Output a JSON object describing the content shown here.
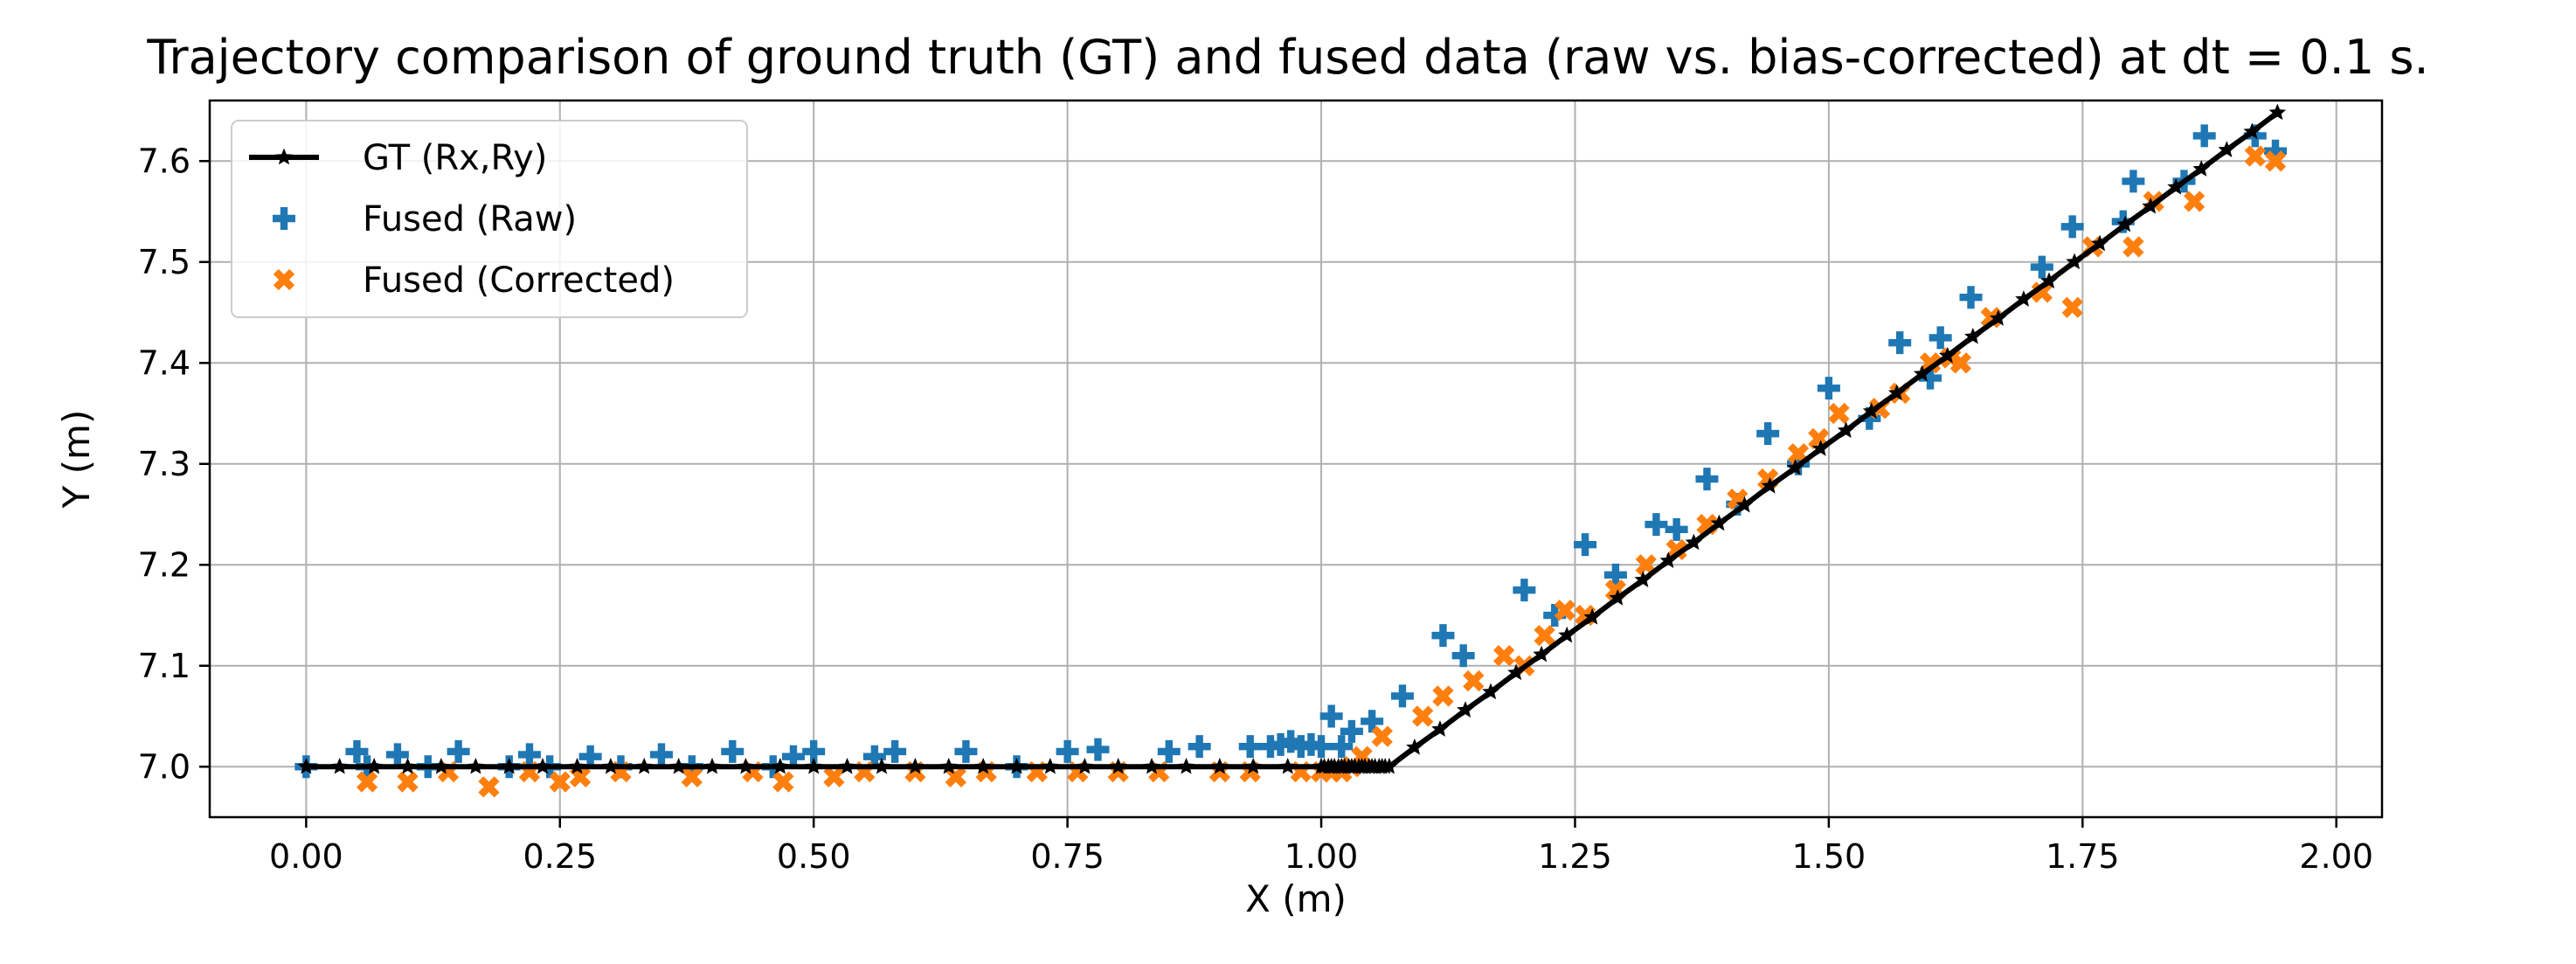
{
  "chart_data": {
    "type": "scatter",
    "title": "Trajectory comparison of ground truth (GT) and fused data (raw vs. bias-corrected) at dt = 0.1 s.",
    "xlabel": "X (m)",
    "ylabel": "Y (m)",
    "xlim": [
      -0.095,
      2.045
    ],
    "ylim": [
      6.95,
      7.66
    ],
    "xticks": [
      "0.00",
      "0.25",
      "0.50",
      "0.75",
      "1.00",
      "1.25",
      "1.50",
      "1.75",
      "2.00"
    ],
    "xtick_values": [
      0,
      0.25,
      0.5,
      0.75,
      1.0,
      1.25,
      1.5,
      1.75,
      2.0
    ],
    "yticks": [
      "7.0",
      "7.1",
      "7.2",
      "7.3",
      "7.4",
      "7.5",
      "7.6"
    ],
    "ytick_values": [
      7.0,
      7.1,
      7.2,
      7.3,
      7.4,
      7.5,
      7.6
    ],
    "grid": true,
    "legend": "top-left",
    "series": [
      {
        "name": "GT (Rx,Ry)",
        "kind": "line",
        "color": "#000000",
        "marker": "star",
        "x": [
          0.0,
          0.033,
          0.067,
          0.1,
          0.133,
          0.167,
          0.2,
          0.233,
          0.267,
          0.3,
          0.333,
          0.367,
          0.4,
          0.433,
          0.467,
          0.5,
          0.533,
          0.567,
          0.6,
          0.633,
          0.667,
          0.7,
          0.733,
          0.767,
          0.8,
          0.833,
          0.867,
          0.9,
          0.933,
          0.967,
          1.0,
          1.003,
          1.007,
          1.01,
          1.013,
          1.017,
          1.02,
          1.023,
          1.027,
          1.03,
          1.033,
          1.037,
          1.04,
          1.043,
          1.047,
          1.05,
          1.053,
          1.057,
          1.06,
          1.063,
          1.067,
          1.092,
          1.117,
          1.142,
          1.167,
          1.192,
          1.217,
          1.242,
          1.267,
          1.292,
          1.317,
          1.342,
          1.367,
          1.392,
          1.417,
          1.442,
          1.467,
          1.492,
          1.517,
          1.542,
          1.567,
          1.592,
          1.617,
          1.642,
          1.667,
          1.692,
          1.717,
          1.742,
          1.767,
          1.792,
          1.817,
          1.842,
          1.867,
          1.892,
          1.917,
          1.942
        ],
        "y": [
          7.0,
          7.0,
          7.0,
          7.0,
          7.0,
          7.0,
          7.0,
          7.0,
          7.0,
          7.0,
          7.0,
          7.0,
          7.0,
          7.0,
          7.0,
          7.0,
          7.0,
          7.0,
          7.0,
          7.0,
          7.0,
          7.0,
          7.0,
          7.0,
          7.0,
          7.0,
          7.0,
          7.0,
          7.0,
          7.0,
          7.0,
          7.0,
          7.0,
          7.0,
          7.0,
          7.0,
          7.0,
          7.0,
          7.0,
          7.0,
          7.0,
          7.0,
          7.0,
          7.0,
          7.0,
          7.0,
          7.0,
          7.0,
          7.0,
          7.0,
          7.0,
          7.019,
          7.037,
          7.056,
          7.074,
          7.093,
          7.111,
          7.13,
          7.148,
          7.167,
          7.185,
          7.204,
          7.222,
          7.241,
          7.259,
          7.278,
          7.296,
          7.315,
          7.333,
          7.352,
          7.37,
          7.389,
          7.407,
          7.426,
          7.444,
          7.463,
          7.481,
          7.5,
          7.518,
          7.537,
          7.555,
          7.574,
          7.592,
          7.611,
          7.629,
          7.648
        ]
      },
      {
        "name": "Fused (Raw)",
        "kind": "scatter",
        "color": "#1f77b4",
        "marker": "plus",
        "x": [
          0.0,
          0.05,
          0.06,
          0.09,
          0.12,
          0.15,
          0.2,
          0.22,
          0.24,
          0.28,
          0.31,
          0.35,
          0.38,
          0.42,
          0.46,
          0.48,
          0.5,
          0.56,
          0.58,
          0.65,
          0.7,
          0.75,
          0.78,
          0.85,
          0.88,
          0.93,
          0.95,
          0.96,
          0.97,
          0.98,
          0.99,
          1.0,
          1.01,
          1.02,
          1.03,
          1.05,
          1.08,
          1.12,
          1.14,
          1.2,
          1.23,
          1.26,
          1.29,
          1.33,
          1.35,
          1.38,
          1.41,
          1.44,
          1.47,
          1.5,
          1.54,
          1.57,
          1.6,
          1.61,
          1.64,
          1.71,
          1.74,
          1.79,
          1.8,
          1.85,
          1.87,
          1.92,
          1.94
        ],
        "y": [
          7.0,
          7.015,
          7.0,
          7.012,
          7.0,
          7.015,
          7.0,
          7.012,
          7.0,
          7.01,
          7.0,
          7.012,
          7.0,
          7.015,
          7.0,
          7.01,
          7.015,
          7.01,
          7.015,
          7.015,
          7.0,
          7.015,
          7.017,
          7.015,
          7.02,
          7.02,
          7.02,
          7.022,
          7.025,
          7.02,
          7.022,
          7.02,
          7.05,
          7.02,
          7.035,
          7.045,
          7.07,
          7.13,
          7.11,
          7.175,
          7.15,
          7.22,
          7.19,
          7.24,
          7.235,
          7.285,
          7.26,
          7.33,
          7.3,
          7.375,
          7.345,
          7.42,
          7.385,
          7.425,
          7.465,
          7.495,
          7.535,
          7.54,
          7.58,
          7.58,
          7.625,
          7.625,
          7.61
        ]
      },
      {
        "name": "Fused (Corrected)",
        "kind": "scatter",
        "color": "#ff7f0e",
        "marker": "x",
        "x": [
          0.06,
          0.1,
          0.14,
          0.18,
          0.22,
          0.25,
          0.27,
          0.31,
          0.38,
          0.44,
          0.47,
          0.52,
          0.55,
          0.6,
          0.64,
          0.67,
          0.72,
          0.76,
          0.8,
          0.84,
          0.9,
          0.93,
          0.98,
          1.0,
          1.01,
          1.02,
          1.03,
          1.04,
          1.06,
          1.1,
          1.12,
          1.15,
          1.18,
          1.2,
          1.22,
          1.24,
          1.26,
          1.29,
          1.32,
          1.35,
          1.38,
          1.41,
          1.44,
          1.47,
          1.49,
          1.51,
          1.55,
          1.57,
          1.6,
          1.62,
          1.63,
          1.66,
          1.71,
          1.74,
          1.76,
          1.8,
          1.82,
          1.86,
          1.92,
          1.94
        ],
        "y": [
          6.985,
          6.985,
          6.995,
          6.98,
          6.995,
          6.985,
          6.99,
          6.995,
          6.99,
          6.995,
          6.985,
          6.99,
          6.995,
          6.995,
          6.99,
          6.995,
          6.995,
          6.995,
          6.995,
          6.995,
          6.995,
          6.995,
          6.995,
          6.995,
          6.995,
          6.995,
          7.0,
          7.01,
          7.03,
          7.05,
          7.07,
          7.085,
          7.11,
          7.1,
          7.13,
          7.155,
          7.15,
          7.175,
          7.2,
          7.215,
          7.24,
          7.265,
          7.285,
          7.31,
          7.325,
          7.35,
          7.355,
          7.37,
          7.4,
          7.405,
          7.4,
          7.445,
          7.47,
          7.455,
          7.515,
          7.515,
          7.56,
          7.56,
          7.605,
          7.6
        ]
      }
    ]
  }
}
